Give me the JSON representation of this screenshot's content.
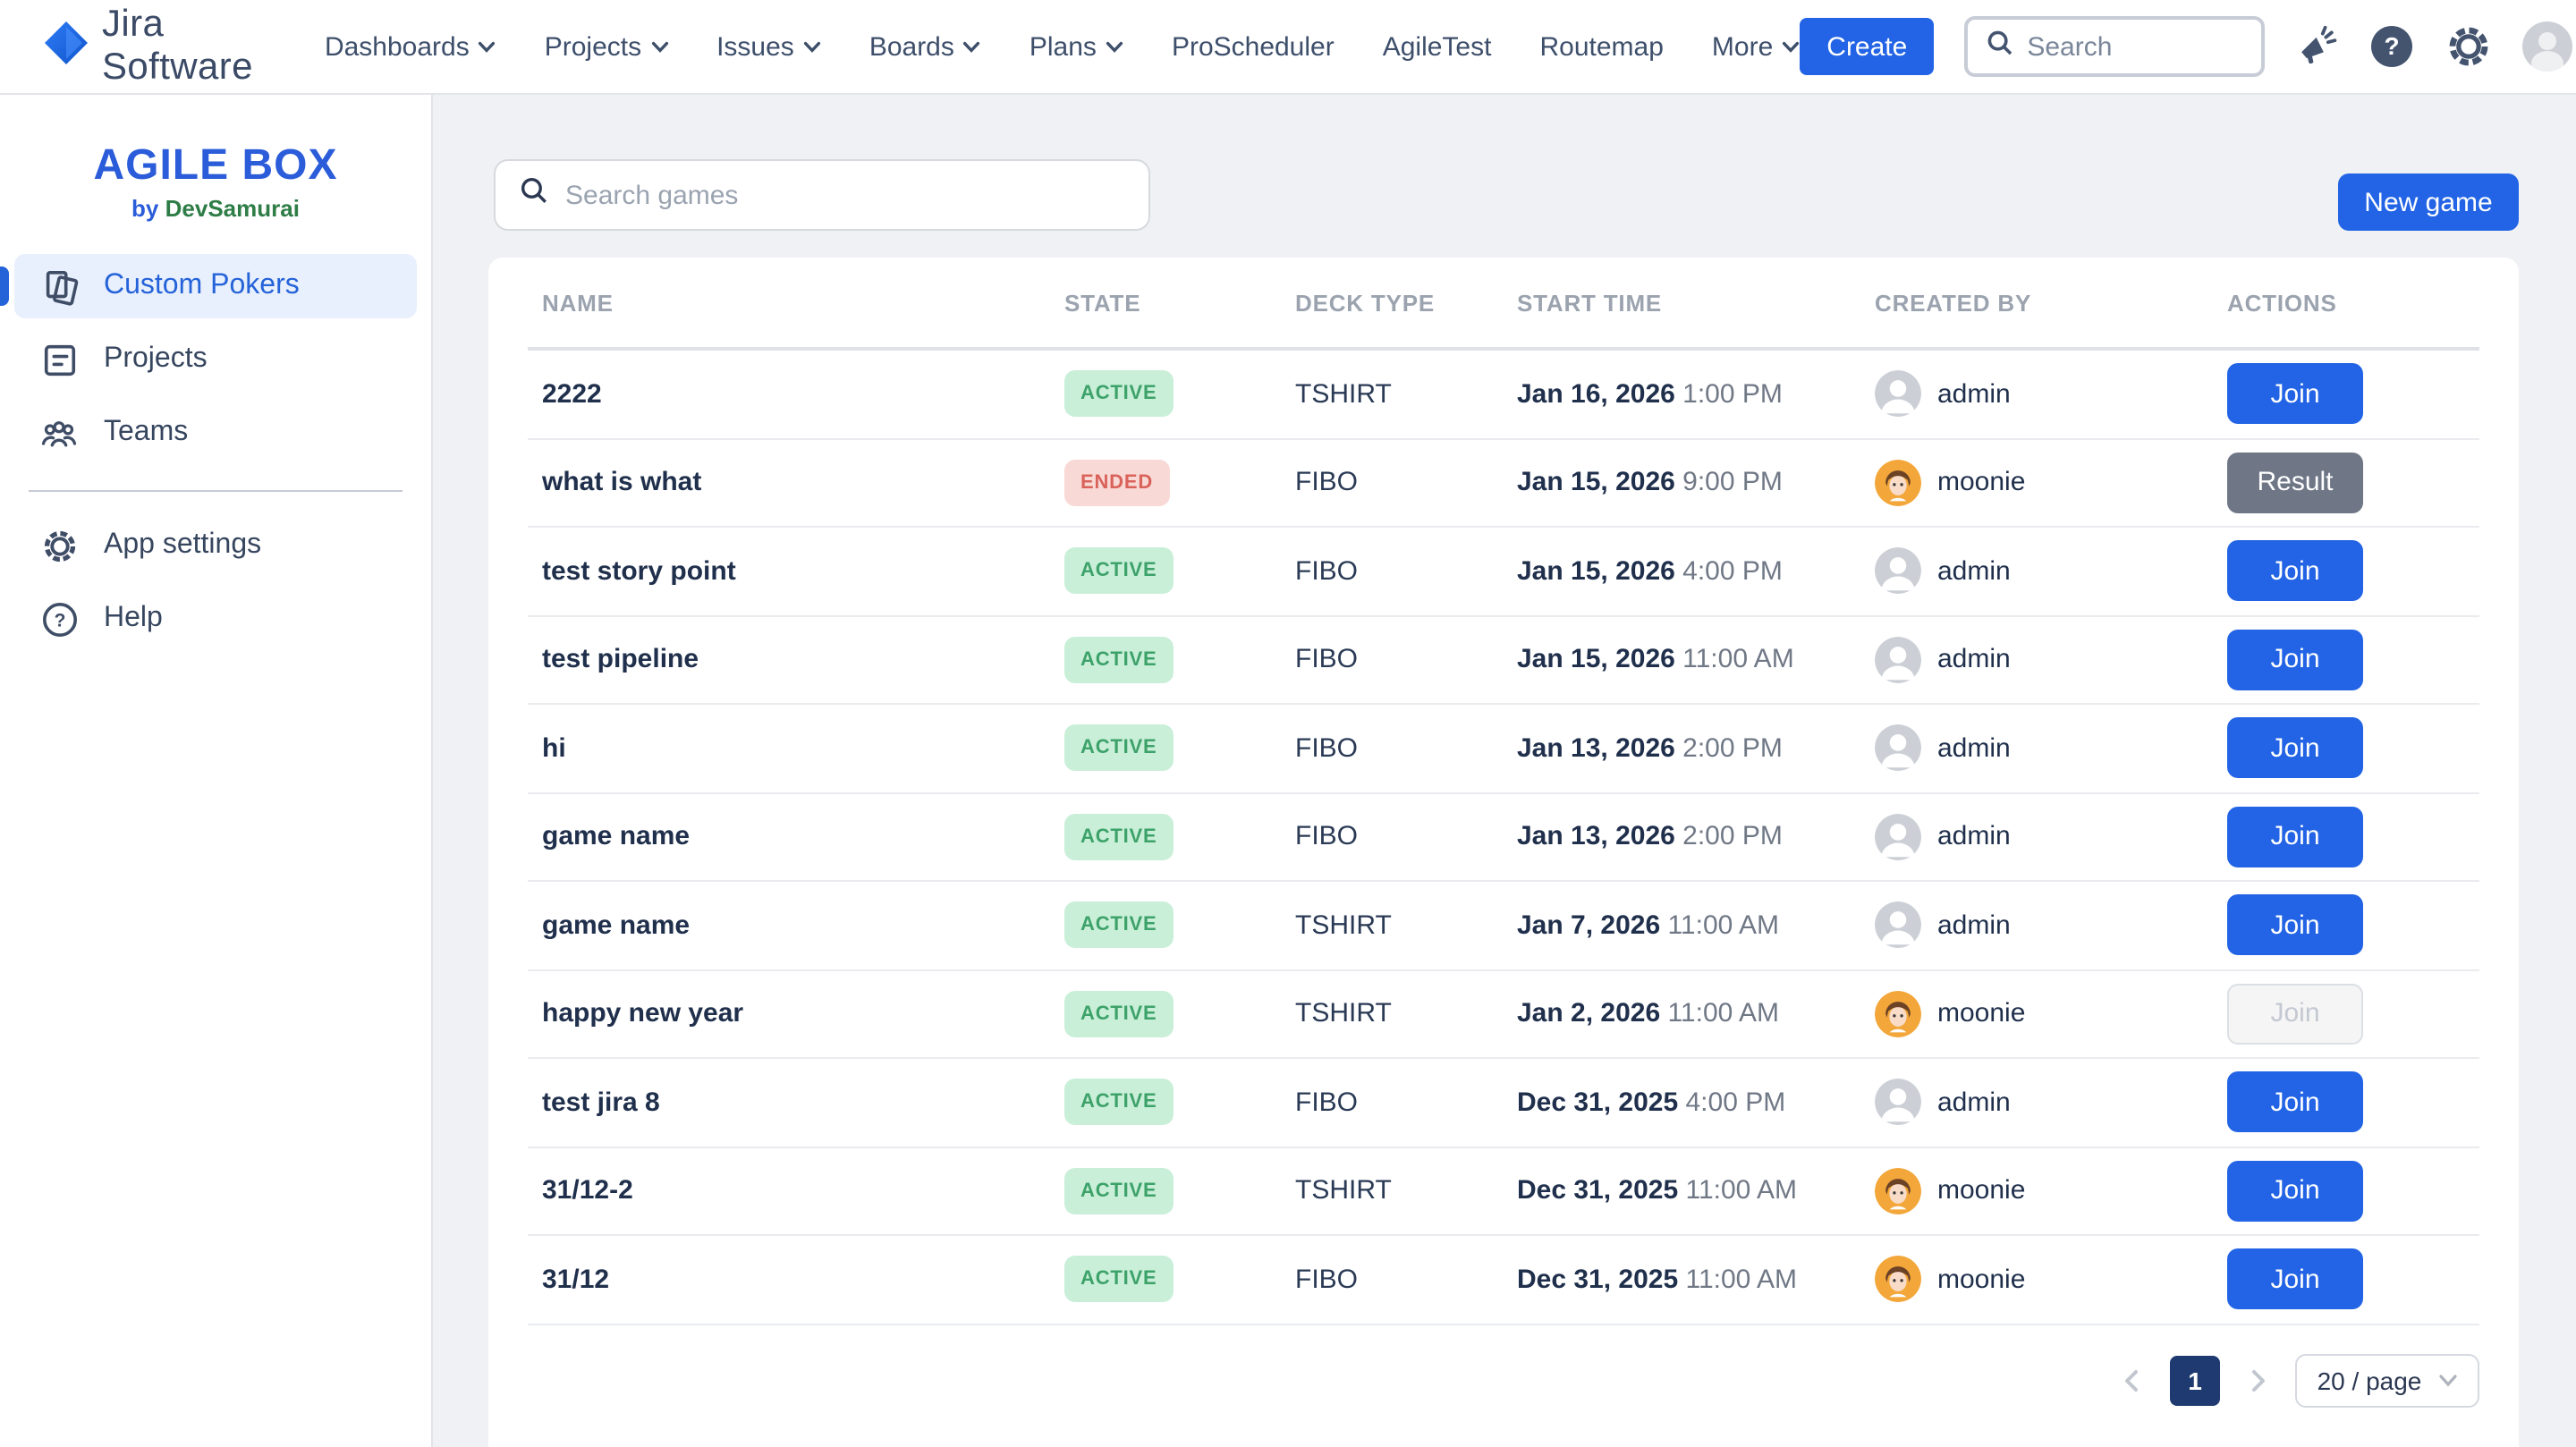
{
  "topbar": {
    "logo_text": "Jira Software",
    "nav": [
      {
        "label": "Dashboards",
        "chevron": true
      },
      {
        "label": "Projects",
        "chevron": true
      },
      {
        "label": "Issues",
        "chevron": true
      },
      {
        "label": "Boards",
        "chevron": true
      },
      {
        "label": "Plans",
        "chevron": true
      },
      {
        "label": "ProScheduler",
        "chevron": false
      },
      {
        "label": "AgileTest",
        "chevron": false
      },
      {
        "label": "Routemap",
        "chevron": false
      },
      {
        "label": "More",
        "chevron": true
      }
    ],
    "create_label": "Create",
    "search_placeholder": "Search",
    "icons": [
      "announcement-icon",
      "help-icon",
      "settings-icon",
      "user-avatar"
    ]
  },
  "sidebar": {
    "title": "AGILE BOX",
    "subtitle_prefix": "by",
    "subtitle_brand": "DevSamurai",
    "items": [
      {
        "label": "Custom Pokers",
        "icon": "cards",
        "active": true
      },
      {
        "label": "Projects",
        "icon": "projects",
        "active": false
      },
      {
        "label": "Teams",
        "icon": "teams",
        "active": false
      },
      {
        "divider": true
      },
      {
        "label": "App settings",
        "icon": "gear",
        "active": false
      },
      {
        "label": "Help",
        "icon": "help",
        "active": false
      }
    ]
  },
  "content": {
    "search_placeholder": "Search games",
    "new_game_label": "New game",
    "table": {
      "columns": [
        "NAME",
        "STATE",
        "DECK TYPE",
        "START TIME",
        "CREATED BY",
        "ACTIONS"
      ],
      "rows": [
        {
          "name": "2222",
          "state": "ACTIVE",
          "deck": "TSHIRT",
          "date": "Jan 16, 2026",
          "time": "1:00 PM",
          "creator": "admin",
          "avatar": "admin",
          "action": "Join",
          "action_style": "primary"
        },
        {
          "name": "what is what",
          "state": "ENDED",
          "deck": "FIBO",
          "date": "Jan 15, 2026",
          "time": "9:00 PM",
          "creator": "moonie",
          "avatar": "moonie",
          "action": "Result",
          "action_style": "result"
        },
        {
          "name": "test story point",
          "state": "ACTIVE",
          "deck": "FIBO",
          "date": "Jan 15, 2026",
          "time": "4:00 PM",
          "creator": "admin",
          "avatar": "admin",
          "action": "Join",
          "action_style": "primary"
        },
        {
          "name": "test pipeline",
          "state": "ACTIVE",
          "deck": "FIBO",
          "date": "Jan 15, 2026",
          "time": "11:00 AM",
          "creator": "admin",
          "avatar": "admin",
          "action": "Join",
          "action_style": "primary"
        },
        {
          "name": "hi",
          "state": "ACTIVE",
          "deck": "FIBO",
          "date": "Jan 13, 2026",
          "time": "2:00 PM",
          "creator": "admin",
          "avatar": "admin",
          "action": "Join",
          "action_style": "primary"
        },
        {
          "name": "game name",
          "state": "ACTIVE",
          "deck": "FIBO",
          "date": "Jan 13, 2026",
          "time": "2:00 PM",
          "creator": "admin",
          "avatar": "admin",
          "action": "Join",
          "action_style": "primary"
        },
        {
          "name": "game name",
          "state": "ACTIVE",
          "deck": "TSHIRT",
          "date": "Jan 7, 2026",
          "time": "11:00 AM",
          "creator": "admin",
          "avatar": "admin",
          "action": "Join",
          "action_style": "primary"
        },
        {
          "name": "happy new year",
          "state": "ACTIVE",
          "deck": "TSHIRT",
          "date": "Jan 2, 2026",
          "time": "11:00 AM",
          "creator": "moonie",
          "avatar": "moonie",
          "action": "Join",
          "action_style": "disabled"
        },
        {
          "name": "test jira 8",
          "state": "ACTIVE",
          "deck": "FIBO",
          "date": "Dec 31, 2025",
          "time": "4:00 PM",
          "creator": "admin",
          "avatar": "admin",
          "action": "Join",
          "action_style": "primary"
        },
        {
          "name": "31/12-2",
          "state": "ACTIVE",
          "deck": "TSHIRT",
          "date": "Dec 31, 2025",
          "time": "11:00 AM",
          "creator": "moonie",
          "avatar": "moonie",
          "action": "Join",
          "action_style": "primary"
        },
        {
          "name": "31/12",
          "state": "ACTIVE",
          "deck": "FIBO",
          "date": "Dec 31, 2025",
          "time": "11:00 AM",
          "creator": "moonie",
          "avatar": "moonie",
          "action": "Join",
          "action_style": "primary"
        }
      ]
    },
    "pagination": {
      "current_page": "1",
      "page_size": "20 / page"
    }
  },
  "colors": {
    "primary_blue": "#2264e5",
    "brand_blue": "#2b5cd9",
    "brand_green": "#2e7d46",
    "active_badge_bg": "#c9efd9",
    "active_badge_text": "#3da269",
    "ended_badge_bg": "#f9d9d5",
    "ended_badge_text": "#d9635b",
    "result_button_gray": "#6f7787",
    "pagination_active_navy": "#1e3a70",
    "avatar_moonie_orange": "#f3a73a",
    "main_background": "#f0f1f4"
  }
}
